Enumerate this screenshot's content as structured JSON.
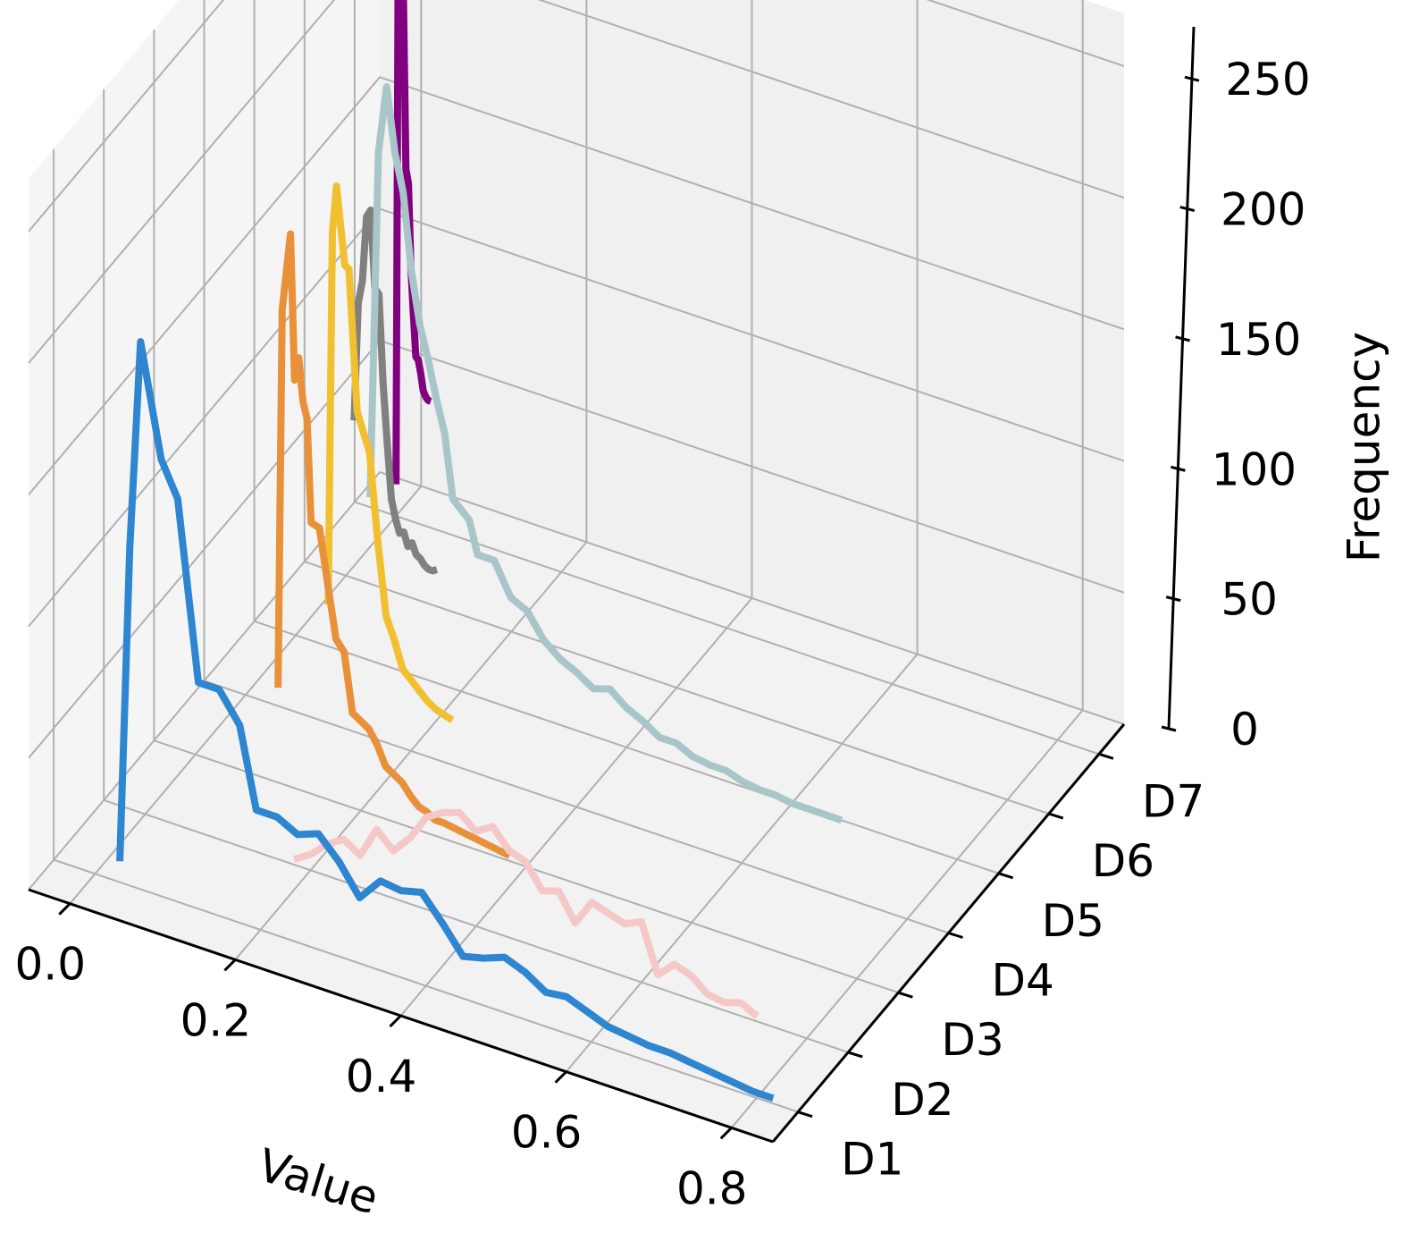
{
  "chart_data": {
    "type": "line",
    "projection": "3d",
    "xlabel": "Value",
    "ylabel": "",
    "zlabel": "Frequency",
    "xlim": [
      -0.05,
      0.85
    ],
    "zlim": [
      0,
      270
    ],
    "xticks": [
      "0.0",
      "0.2",
      "0.4",
      "0.6",
      "0.8"
    ],
    "xtick_values": [
      0.0,
      0.2,
      0.4,
      0.6,
      0.8
    ],
    "zticks": [
      "0",
      "50",
      "100",
      "150",
      "200",
      "250"
    ],
    "ztick_values": [
      0,
      50,
      100,
      150,
      200,
      250
    ],
    "categories": [
      "D1",
      "D2",
      "D3",
      "D4",
      "D5",
      "D6",
      "D7"
    ],
    "grid": true,
    "series": [
      {
        "category": "D1",
        "color": "#2e86d0",
        "x": [
          0.03,
          0.042,
          0.055,
          0.08,
          0.1,
          0.125,
          0.15,
          0.175,
          0.195,
          0.22,
          0.245,
          0.27,
          0.295,
          0.32,
          0.345,
          0.37,
          0.395,
          0.42,
          0.445,
          0.47,
          0.495,
          0.52,
          0.545,
          0.57,
          0.595,
          0.62,
          0.645,
          0.67,
          0.695,
          0.72,
          0.745,
          0.77,
          0.795,
          0.82
        ],
        "z": [
          8,
          128,
          208,
          166,
          153,
          86,
          86,
          75,
          45,
          45,
          41,
          44,
          36,
          25,
          34,
          33,
          35,
          26,
          16,
          18,
          21,
          18,
          13,
          14,
          11,
          8,
          7,
          6,
          6,
          5,
          4,
          3,
          2,
          2
        ]
      },
      {
        "category": "D2",
        "color": "#f5c8c8",
        "x": [
          0.18,
          0.2,
          0.22,
          0.24,
          0.26,
          0.28,
          0.3,
          0.32,
          0.34,
          0.36,
          0.38,
          0.4,
          0.42,
          0.44,
          0.46,
          0.48,
          0.5,
          0.52,
          0.54,
          0.56,
          0.58,
          0.6,
          0.62,
          0.64,
          0.66,
          0.68,
          0.7,
          0.72,
          0.74
        ],
        "z": [
          2,
          6,
          12,
          16,
          12,
          24,
          18,
          25,
          35,
          39,
          41,
          36,
          40,
          33,
          31,
          22,
          24,
          14,
          24,
          22,
          20,
          23,
          5,
          11,
          9,
          4,
          3,
          5,
          2
        ]
      },
      {
        "category": "D3",
        "color": "#e8903a",
        "x": [
          0.1,
          0.105,
          0.115,
          0.12,
          0.125,
          0.13,
          0.135,
          0.14,
          0.15,
          0.16,
          0.17,
          0.18,
          0.19,
          0.2,
          0.21,
          0.22,
          0.23,
          0.24,
          0.25,
          0.26,
          0.27,
          0.28,
          0.29,
          0.3,
          0.32,
          0.34,
          0.36,
          0.38
        ],
        "z": [
          36,
          180,
          210,
          155,
          164,
          148,
          142,
          103,
          102,
          82,
          62,
          58,
          36,
          34,
          32,
          27,
          20,
          18,
          16,
          12,
          9,
          8,
          6,
          6,
          5,
          4,
          3,
          2
        ]
      },
      {
        "category": "D4",
        "color": "#f0c030",
        "x": [
          0.1,
          0.105,
          0.11,
          0.12,
          0.125,
          0.135,
          0.15,
          0.16,
          0.17,
          0.18,
          0.19,
          0.2,
          0.21,
          0.22,
          0.23,
          0.24,
          0.25
        ],
        "z": [
          45,
          187,
          205,
          176,
          175,
          122,
          108,
          75,
          48,
          40,
          30,
          27,
          24,
          21,
          19,
          18,
          17
        ]
      },
      {
        "category": "D5",
        "color": "#a8c6ca",
        "x": [
          0.09,
          0.1,
          0.11,
          0.12,
          0.13,
          0.14,
          0.15,
          0.16,
          0.17,
          0.18,
          0.19,
          0.21,
          0.22,
          0.24,
          0.26,
          0.28,
          0.3,
          0.32,
          0.34,
          0.36,
          0.38,
          0.4,
          0.42,
          0.44,
          0.46,
          0.48,
          0.5,
          0.52,
          0.54,
          0.56,
          0.58,
          0.6,
          0.62,
          0.64,
          0.66
        ],
        "z": [
          62,
          194,
          220,
          196,
          182,
          153,
          134,
          122,
          108,
          96,
          72,
          66,
          54,
          54,
          42,
          39,
          30,
          25,
          22,
          18,
          20,
          15,
          12,
          8,
          8,
          5,
          4,
          4,
          2,
          1,
          1,
          0,
          0,
          0,
          0
        ]
      },
      {
        "category": "D6",
        "color": "#808080",
        "x": [
          0.01,
          0.015,
          0.02,
          0.025,
          0.03,
          0.035,
          0.04,
          0.045,
          0.05,
          0.055,
          0.06,
          0.065,
          0.07,
          0.075,
          0.08,
          0.085,
          0.09,
          0.095,
          0.1,
          0.105,
          0.11
        ],
        "z": [
          60,
          105,
          114,
          139,
          142,
          113,
          111,
          78,
          56,
          35,
          28,
          23,
          24,
          19,
          21,
          17,
          16,
          14,
          13,
          13,
          14
        ]
      },
      {
        "category": "D7",
        "color": "#80007f",
        "x": [
          0.0,
          0.003,
          0.006,
          0.009,
          0.012,
          0.015,
          0.018,
          0.021,
          0.024,
          0.027,
          0.03,
          0.033,
          0.036,
          0.039,
          0.042
        ],
        "z": [
          12,
          242,
          228,
          198,
          133,
          128,
          96,
          79,
          63,
          62,
          57,
          51,
          49,
          48,
          48
        ]
      }
    ]
  }
}
